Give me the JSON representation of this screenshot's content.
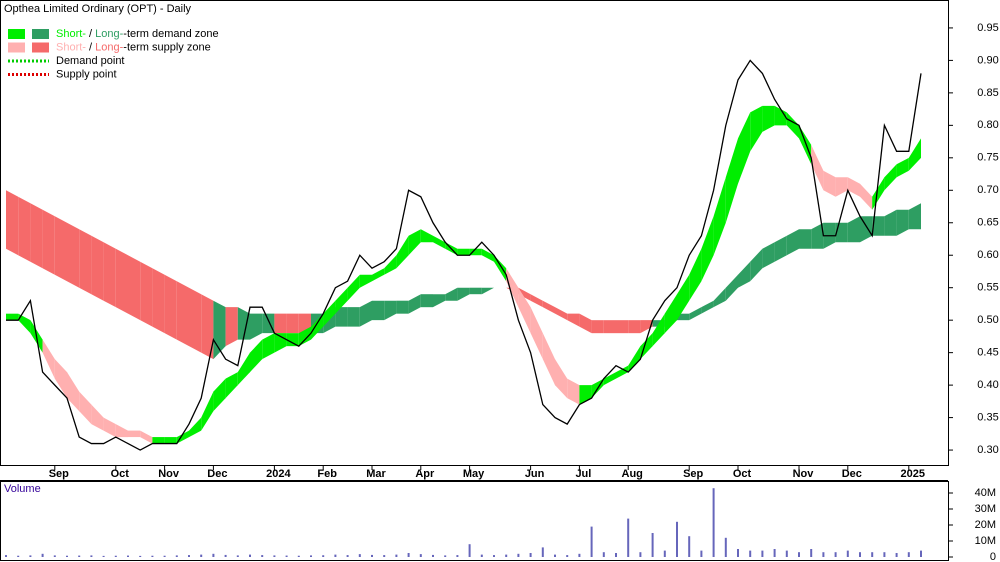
{
  "chart_data": {
    "type": "stock",
    "title": "Opthea Limited Ordinary (OPT) - Daily",
    "legend": [
      {
        "swatches": [
          "#00ee00",
          "#2e9e62"
        ],
        "parts": [
          {
            "text": "Short-",
            "color": "#00ee00"
          },
          {
            "text": " / "
          },
          {
            "text": "Long-",
            "color": "#2e9e62"
          },
          {
            "text": "-term demand zone"
          }
        ]
      },
      {
        "swatches": [
          "#ffb0b0",
          "#f56a6a"
        ],
        "parts": [
          {
            "text": "Short-",
            "color": "#ffb0b0"
          },
          {
            "text": " / "
          },
          {
            "text": "Long-",
            "color": "#f56a6a"
          },
          {
            "text": "-term supply zone"
          }
        ]
      },
      {
        "line": "#00cc00",
        "parts": [
          {
            "text": "Demand point"
          }
        ]
      },
      {
        "line": "#dd0000",
        "parts": [
          {
            "text": "Supply point"
          }
        ]
      }
    ],
    "categories": [
      null,
      null,
      null,
      null,
      "Sep",
      null,
      null,
      null,
      null,
      "Oct",
      null,
      null,
      null,
      "Nov",
      null,
      null,
      null,
      "Dec",
      null,
      null,
      null,
      null,
      "2024",
      null,
      null,
      null,
      "Feb",
      null,
      null,
      null,
      "Mar",
      null,
      null,
      null,
      "Apr",
      null,
      null,
      null,
      "May",
      null,
      null,
      null,
      null,
      "Jun",
      null,
      null,
      null,
      "Jul",
      null,
      null,
      null,
      "Aug",
      null,
      null,
      null,
      null,
      "Sep",
      null,
      null,
      null,
      "Oct",
      null,
      null,
      null,
      null,
      "Nov",
      null,
      null,
      null,
      "Dec",
      null,
      null,
      null,
      null,
      "2025",
      null
    ],
    "values": [
      0.5,
      0.5,
      0.53,
      0.42,
      0.4,
      0.38,
      0.32,
      0.31,
      0.31,
      0.32,
      0.31,
      0.3,
      0.31,
      0.31,
      0.31,
      0.34,
      0.38,
      0.47,
      0.44,
      0.43,
      0.52,
      0.52,
      0.48,
      0.47,
      0.46,
      0.48,
      0.51,
      0.55,
      0.56,
      0.6,
      0.58,
      0.59,
      0.61,
      0.7,
      0.69,
      0.65,
      0.62,
      0.6,
      0.6,
      0.62,
      0.6,
      0.57,
      0.5,
      0.45,
      0.37,
      0.35,
      0.34,
      0.37,
      0.38,
      0.41,
      0.43,
      0.42,
      0.44,
      0.5,
      0.53,
      0.55,
      0.6,
      0.63,
      0.7,
      0.8,
      0.87,
      0.9,
      0.88,
      0.84,
      0.81,
      0.8,
      0.75,
      0.63,
      0.63,
      0.7,
      0.66,
      0.63,
      0.8,
      0.76,
      0.76,
      0.88
    ],
    "color": "#000000",
    "short_term_zone": {
      "demand_color": "#00ee00",
      "supply_color": "#ffb0b0",
      "upper": [
        0.51,
        0.51,
        0.5,
        0.47,
        0.44,
        0.42,
        0.39,
        0.37,
        0.35,
        0.34,
        0.33,
        0.33,
        0.32,
        0.32,
        0.32,
        0.33,
        0.35,
        0.39,
        0.41,
        0.42,
        0.45,
        0.47,
        0.48,
        0.48,
        0.48,
        0.49,
        0.51,
        0.53,
        0.55,
        0.57,
        0.57,
        0.58,
        0.6,
        0.63,
        0.64,
        0.63,
        0.62,
        0.61,
        0.61,
        0.61,
        0.6,
        0.58,
        0.55,
        0.52,
        0.48,
        0.44,
        0.41,
        0.4,
        0.4,
        0.41,
        0.42,
        0.43,
        0.46,
        0.48,
        0.51,
        0.54,
        0.57,
        0.61,
        0.66,
        0.72,
        0.78,
        0.82,
        0.83,
        0.83,
        0.82,
        0.8,
        0.77,
        0.73,
        0.72,
        0.72,
        0.71,
        0.69,
        0.72,
        0.74,
        0.75,
        0.78
      ],
      "lower": [
        0.5,
        0.5,
        0.48,
        0.45,
        0.41,
        0.38,
        0.36,
        0.34,
        0.33,
        0.32,
        0.32,
        0.32,
        0.31,
        0.31,
        0.31,
        0.32,
        0.33,
        0.36,
        0.38,
        0.4,
        0.42,
        0.44,
        0.45,
        0.46,
        0.46,
        0.47,
        0.49,
        0.51,
        0.53,
        0.55,
        0.56,
        0.57,
        0.58,
        0.6,
        0.62,
        0.62,
        0.61,
        0.6,
        0.6,
        0.6,
        0.59,
        0.56,
        0.52,
        0.48,
        0.44,
        0.4,
        0.38,
        0.37,
        0.38,
        0.4,
        0.41,
        0.42,
        0.44,
        0.46,
        0.48,
        0.5,
        0.53,
        0.56,
        0.6,
        0.65,
        0.71,
        0.76,
        0.79,
        0.8,
        0.8,
        0.78,
        0.74,
        0.7,
        0.69,
        0.7,
        0.69,
        0.67,
        0.7,
        0.72,
        0.73,
        0.75
      ]
    },
    "long_term_zone": {
      "demand_color": "#2e9e62",
      "supply_color": "#f56a6a",
      "upper": [
        0.7,
        0.69,
        0.68,
        0.67,
        0.66,
        0.65,
        0.64,
        0.63,
        0.62,
        0.61,
        0.6,
        0.59,
        0.58,
        0.57,
        0.56,
        0.55,
        0.54,
        0.53,
        0.52,
        0.52,
        0.51,
        0.51,
        0.51,
        0.51,
        0.51,
        0.51,
        0.51,
        0.52,
        0.52,
        0.52,
        0.53,
        0.53,
        0.53,
        0.53,
        0.54,
        0.54,
        0.54,
        0.55,
        0.55,
        0.55,
        0.55,
        0.55,
        0.55,
        0.54,
        0.53,
        0.52,
        0.51,
        0.51,
        0.5,
        0.5,
        0.5,
        0.5,
        0.5,
        0.5,
        0.5,
        0.51,
        0.51,
        0.52,
        0.53,
        0.55,
        0.57,
        0.59,
        0.61,
        0.62,
        0.63,
        0.64,
        0.64,
        0.65,
        0.65,
        0.65,
        0.66,
        0.66,
        0.66,
        0.67,
        0.67,
        0.68
      ],
      "lower": [
        0.61,
        0.6,
        0.59,
        0.58,
        0.57,
        0.56,
        0.55,
        0.54,
        0.53,
        0.52,
        0.51,
        0.5,
        0.49,
        0.48,
        0.47,
        0.46,
        0.45,
        0.44,
        0.46,
        0.47,
        0.47,
        0.48,
        0.48,
        0.48,
        0.48,
        0.48,
        0.48,
        0.49,
        0.49,
        0.49,
        0.5,
        0.5,
        0.51,
        0.51,
        0.52,
        0.52,
        0.53,
        0.53,
        0.54,
        0.54,
        0.55,
        0.55,
        0.54,
        0.53,
        0.52,
        0.51,
        0.5,
        0.49,
        0.48,
        0.48,
        0.48,
        0.48,
        0.48,
        0.49,
        0.49,
        0.5,
        0.5,
        0.51,
        0.52,
        0.53,
        0.55,
        0.56,
        0.58,
        0.59,
        0.6,
        0.61,
        0.61,
        0.61,
        0.62,
        0.62,
        0.62,
        0.63,
        0.63,
        0.63,
        0.64,
        0.64
      ]
    },
    "ylim": [
      0.277,
      0.993
    ],
    "yticks": [
      {
        "value": 0.3,
        "label": "0.30"
      },
      0.35,
      {
        "value": 0.4,
        "label": "0.40"
      },
      0.45,
      {
        "value": 0.5,
        "label": "0.50"
      },
      0.55,
      {
        "value": 0.6,
        "label": "0.60"
      },
      0.65,
      {
        "value": 0.7,
        "label": "0.70"
      },
      0.75,
      {
        "value": 0.8,
        "label": "0.80"
      },
      0.85,
      {
        "value": 0.9,
        "label": "0.90"
      },
      0.95
    ],
    "volume": {
      "label": "Volume",
      "color": "#6666bb",
      "values": [
        1.2,
        0.8,
        1.0,
        2.0,
        1.0,
        0.8,
        0.9,
        1.0,
        0.7,
        0.8,
        0.9,
        0.7,
        0.8,
        0.8,
        1.0,
        1.2,
        1.5,
        2.0,
        1.3,
        1.0,
        1.5,
        1.2,
        1.0,
        0.9,
        0.8,
        1.0,
        1.1,
        1.5,
        1.2,
        1.8,
        1.3,
        1.2,
        1.5,
        2.5,
        1.8,
        1.3,
        1.0,
        1.2,
        8,
        1.5,
        1.2,
        1.5,
        2.0,
        2.5,
        6,
        1.5,
        1.2,
        2.0,
        19,
        3,
        2.5,
        24,
        3,
        15,
        4,
        22,
        13,
        4,
        43,
        12,
        5,
        4,
        4,
        5,
        4,
        3,
        5,
        3,
        3,
        4,
        3,
        3,
        3,
        2.5,
        3,
        4
      ],
      "ylim": [
        0,
        47.5
      ],
      "yticks": [
        0,
        {
          "value": 10,
          "label": "10M"
        },
        {
          "value": 20,
          "label": "20M"
        },
        {
          "value": 30,
          "label": "30M"
        },
        {
          "value": 40,
          "label": "40M"
        }
      ]
    }
  }
}
